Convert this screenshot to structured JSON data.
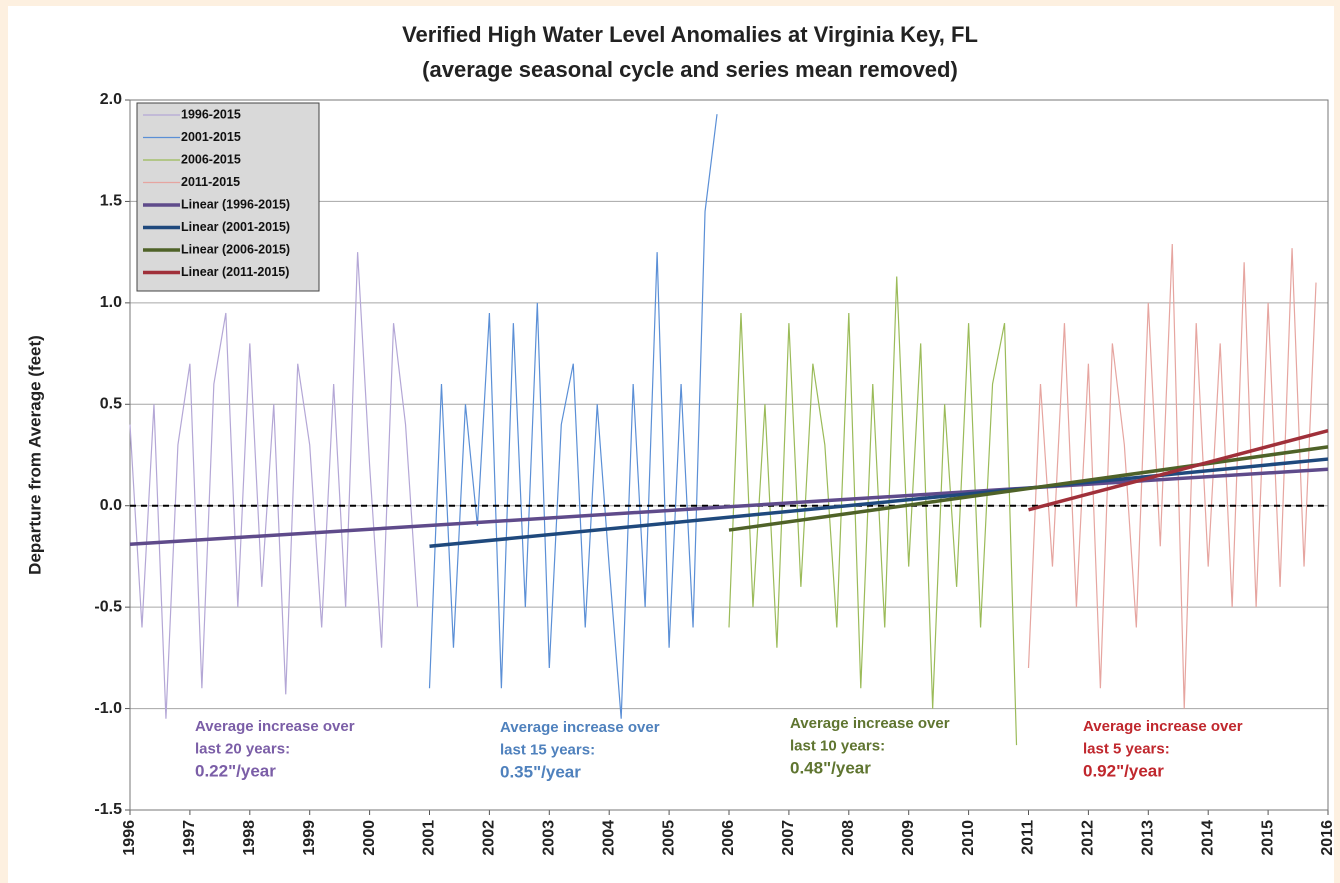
{
  "chart_data": {
    "type": "line",
    "title": "Verified High Water Level Anomalies at Virginia Key, FL",
    "subtitle": "(average seasonal cycle and series mean removed)",
    "y_label": "Departure from Average (feet)",
    "xlim": [
      1996,
      2016
    ],
    "xticks": [
      1996,
      1997,
      1998,
      1999,
      2000,
      2001,
      2002,
      2003,
      2004,
      2005,
      2006,
      2007,
      2008,
      2009,
      2010,
      2011,
      2012,
      2013,
      2014,
      2015,
      2016
    ],
    "ylim": [
      -1.5,
      2.0
    ],
    "yticks": [
      -1.5,
      {
        "value": -1.0,
        "label": "-1.0"
      },
      -0.5,
      {
        "value": 0,
        "label": "0.0"
      },
      0.5,
      {
        "value": 1.0,
        "label": "1.0"
      },
      1.5,
      {
        "value": 2.0,
        "label": "2.0"
      }
    ],
    "grid": true,
    "hline": 0,
    "legend": "top-left",
    "series": [
      {
        "name": "1996-2015",
        "color": "#b4a7d6",
        "width": 1.2,
        "x": [
          1996.0,
          1996.2,
          1996.4,
          1996.6,
          1996.8,
          1997.0,
          1997.2,
          1997.4,
          1997.6,
          1997.8,
          1998.0,
          1998.2,
          1998.4,
          1998.6,
          1998.8,
          1999.0,
          1999.2,
          1999.4,
          1999.6,
          1999.8,
          2000.0,
          2000.2,
          2000.4,
          2000.6,
          2000.8
        ],
        "values": [
          0.4,
          -0.6,
          0.5,
          -1.05,
          0.3,
          0.7,
          -0.9,
          0.6,
          0.95,
          -0.5,
          0.8,
          -0.4,
          0.5,
          -0.93,
          0.7,
          0.3,
          -0.6,
          0.6,
          -0.5,
          1.25,
          0.2,
          -0.7,
          0.9,
          0.4,
          -0.5
        ]
      },
      {
        "name": "2001-2015",
        "color": "#5b8fd6",
        "width": 1.2,
        "x": [
          2001.0,
          2001.2,
          2001.4,
          2001.6,
          2001.8,
          2002.0,
          2002.2,
          2002.4,
          2002.6,
          2002.8,
          2003.0,
          2003.2,
          2003.4,
          2003.6,
          2003.8,
          2004.0,
          2004.2,
          2004.4,
          2004.6,
          2004.8,
          2005.0,
          2005.2,
          2005.4,
          2005.6,
          2005.8
        ],
        "values": [
          -0.9,
          0.6,
          -0.7,
          0.5,
          -0.1,
          0.95,
          -0.9,
          0.9,
          -0.5,
          1.0,
          -0.8,
          0.4,
          0.7,
          -0.6,
          0.5,
          -0.3,
          -1.05,
          0.6,
          -0.5,
          1.25,
          -0.7,
          0.6,
          -0.6,
          1.45,
          1.93
        ]
      },
      {
        "name": "2006-2015",
        "color": "#9bbb59",
        "width": 1.2,
        "x": [
          2006.0,
          2006.2,
          2006.4,
          2006.6,
          2006.8,
          2007.0,
          2007.2,
          2007.4,
          2007.6,
          2007.8,
          2008.0,
          2008.2,
          2008.4,
          2008.6,
          2008.8,
          2009.0,
          2009.2,
          2009.4,
          2009.6,
          2009.8,
          2010.0,
          2010.2,
          2010.4,
          2010.6,
          2010.8
        ],
        "values": [
          -0.6,
          0.95,
          -0.5,
          0.5,
          -0.7,
          0.9,
          -0.4,
          0.7,
          0.3,
          -0.6,
          0.95,
          -0.9,
          0.6,
          -0.6,
          1.13,
          -0.3,
          0.8,
          -1.0,
          0.5,
          -0.4,
          0.9,
          -0.6,
          0.6,
          0.9,
          -1.18
        ]
      },
      {
        "name": "2011-2015",
        "color": "#e6a5a0",
        "width": 1.2,
        "x": [
          2011.0,
          2011.2,
          2011.4,
          2011.6,
          2011.8,
          2012.0,
          2012.2,
          2012.4,
          2012.6,
          2012.8,
          2013.0,
          2013.2,
          2013.4,
          2013.6,
          2013.8,
          2014.0,
          2014.2,
          2014.4,
          2014.6,
          2014.8,
          2015.0,
          2015.2,
          2015.4,
          2015.6,
          2015.8
        ],
        "values": [
          -0.8,
          0.6,
          -0.3,
          0.9,
          -0.5,
          0.7,
          -0.9,
          0.8,
          0.3,
          -0.6,
          1.0,
          -0.2,
          1.29,
          -1.0,
          0.9,
          -0.3,
          0.8,
          -0.5,
          1.2,
          -0.5,
          1.0,
          -0.4,
          1.27,
          -0.3,
          1.1
        ]
      },
      {
        "name": "Linear (1996-2015)",
        "color": "#5f4b8b",
        "width": 3.5,
        "x": [
          1996,
          2016
        ],
        "values": [
          -0.19,
          0.18
        ]
      },
      {
        "name": "Linear (2001-2015)",
        "color": "#1f497d",
        "width": 3.5,
        "x": [
          2001,
          2016
        ],
        "values": [
          -0.2,
          0.23
        ]
      },
      {
        "name": "Linear (2006-2015)",
        "color": "#4f6228",
        "width": 3.5,
        "x": [
          2006,
          2016
        ],
        "values": [
          -0.12,
          0.29
        ]
      },
      {
        "name": "Linear (2011-2015)",
        "color": "#a0303a",
        "width": 3.5,
        "x": [
          2011,
          2016
        ],
        "values": [
          -0.02,
          0.37
        ]
      }
    ],
    "annotations": [
      {
        "color": "#7b5ea7",
        "lines": [
          "Average increase over",
          "last 20 years:",
          "0.22\"/year"
        ]
      },
      {
        "color": "#4f81bd",
        "lines": [
          "Average increase over",
          "last 15 years:",
          "0.35\"/year"
        ]
      },
      {
        "color": "#5f7530",
        "lines": [
          "Average increase over",
          "last 10 years:",
          "0.48\"/year"
        ]
      },
      {
        "color": "#c0272d",
        "lines": [
          "Average increase over",
          "last 5 years:",
          "0.92\"/year"
        ]
      }
    ]
  }
}
